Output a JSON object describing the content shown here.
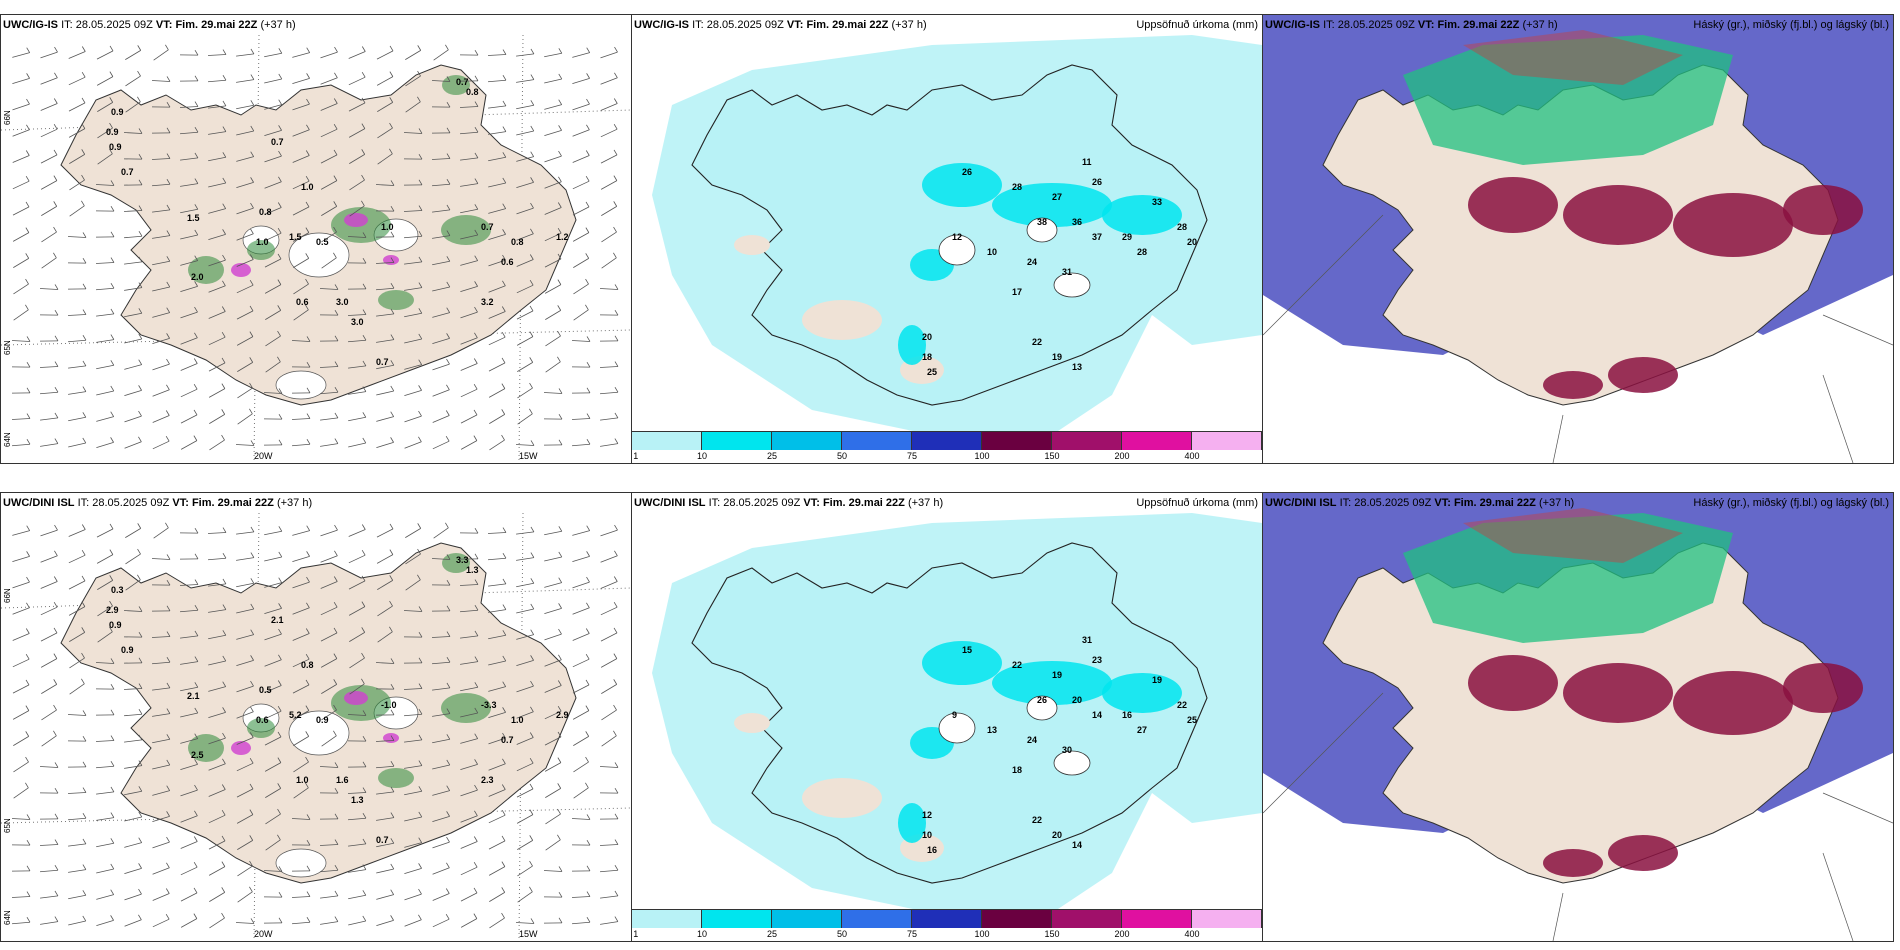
{
  "panels": [
    {
      "id": "top-left",
      "model": "UWC/IG-IS",
      "it_label": "IT:",
      "it_time": "28.05.2025 09Z",
      "vt_label": "VT:",
      "vt_time": "Fim. 29.mai 22Z",
      "lead": "(+37 h)",
      "right_title": "",
      "type": "wind",
      "lon_labels": [
        "20W",
        "15W"
      ],
      "lat_labels": [
        "66N",
        "65N",
        "64N"
      ],
      "value_labels": [
        "0.9",
        "0.9",
        "0.9",
        "0.7",
        "1.0",
        "0.8",
        "1.5",
        "1.0",
        "1.5",
        "2.0",
        "0.5",
        "0.6",
        "3.0",
        "3.0",
        "0.7",
        "1.0",
        "0.7",
        "0.8",
        "0.6",
        "1.2",
        "3.2",
        "0.7",
        "0.8",
        "0.7"
      ]
    },
    {
      "id": "top-middle",
      "model": "UWC/IG-IS",
      "it_label": "IT:",
      "it_time": "28.05.2025 09Z",
      "vt_label": "VT:",
      "vt_time": "Fim. 29.mai 22Z",
      "lead": "(+37 h)",
      "right_title": "Uppsöfnuð úrkoma (mm)",
      "type": "precip",
      "colorbar_ticks": [
        "1",
        "10",
        "25",
        "50",
        "75",
        "100",
        "150",
        "200",
        "400"
      ],
      "colorbar_colors": [
        "#b8f2f6",
        "#00e5ee",
        "#00bfe8",
        "#2f6fe8",
        "#1f2fb8",
        "#6a0040",
        "#a0106a",
        "#e010a0",
        "#f5b0f0"
      ],
      "value_labels": [
        "26",
        "28",
        "27",
        "26",
        "11",
        "38",
        "36",
        "37",
        "29",
        "33",
        "28",
        "20",
        "28",
        "31",
        "24",
        "17",
        "20",
        "18",
        "25",
        "22",
        "19",
        "13",
        "10",
        "12"
      ]
    },
    {
      "id": "top-right",
      "model": "UWC/IG-IS",
      "it_label": "IT:",
      "it_time": "28.05.2025 09Z",
      "vt_label": "VT:",
      "vt_time": "Fim. 29.mai 22Z",
      "lead": "(+37 h)",
      "right_title": "Háský (gr.), miðský (fj.bl.) og lágský (bl.)",
      "type": "clouds"
    },
    {
      "id": "bottom-left",
      "model": "UWC/DINI ISL",
      "it_label": "IT:",
      "it_time": "28.05.2025 09Z",
      "vt_label": "VT:",
      "vt_time": "Fim. 29.mai 22Z",
      "lead": "(+37 h)",
      "right_title": "",
      "type": "wind",
      "lon_labels": [
        "20W",
        "15W"
      ],
      "lat_labels": [
        "66N",
        "65N",
        "64N"
      ],
      "value_labels": [
        "0.3",
        "2.9",
        "0.9",
        "0.9",
        "0.8",
        "0.5",
        "2.1",
        "0.6",
        "5.2",
        "2.5",
        "0.9",
        "1.0",
        "1.6",
        "1.3",
        "0.7",
        "-1.0",
        "-3.3",
        "1.0",
        "0.7",
        "2.9",
        "2.3",
        "3.3",
        "1.3",
        "2.1"
      ]
    },
    {
      "id": "bottom-middle",
      "model": "UWC/DINI ISL",
      "it_label": "IT:",
      "it_time": "28.05.2025 09Z",
      "vt_label": "VT:",
      "vt_time": "Fim. 29.mai 22Z",
      "lead": "(+37 h)",
      "right_title": "Uppsöfnuð úrkoma (mm)",
      "type": "precip",
      "colorbar_ticks": [
        "1",
        "10",
        "25",
        "50",
        "75",
        "100",
        "150",
        "200",
        "400"
      ],
      "colorbar_colors": [
        "#b8f2f6",
        "#00e5ee",
        "#00bfe8",
        "#2f6fe8",
        "#1f2fb8",
        "#6a0040",
        "#a0106a",
        "#e010a0",
        "#f5b0f0"
      ],
      "value_labels": [
        "15",
        "22",
        "19",
        "23",
        "31",
        "26",
        "20",
        "14",
        "16",
        "19",
        "22",
        "25",
        "27",
        "30",
        "24",
        "18",
        "12",
        "10",
        "16",
        "22",
        "20",
        "14",
        "13",
        "9"
      ]
    },
    {
      "id": "bottom-right",
      "model": "UWC/DINI ISL",
      "it_label": "IT:",
      "it_time": "28.05.2025 09Z",
      "vt_label": "VT:",
      "vt_time": "Fim. 29.mai 22Z",
      "lead": "(+37 h)",
      "right_title": "Háský (gr.), miðský (fj.bl.) og lágský (bl.)",
      "type": "clouds"
    }
  ],
  "colors": {
    "land": "#efe2d6",
    "ocean": "#ffffff",
    "precip_light": "#b8f2f6",
    "precip_mid": "#00e5ee",
    "low_cloud": "#4a4ec0",
    "mid_cloud": "#8a1040",
    "high_cloud": "#20c080",
    "wind_green": "#2e8b3a",
    "wind_magenta": "#d040d0"
  }
}
